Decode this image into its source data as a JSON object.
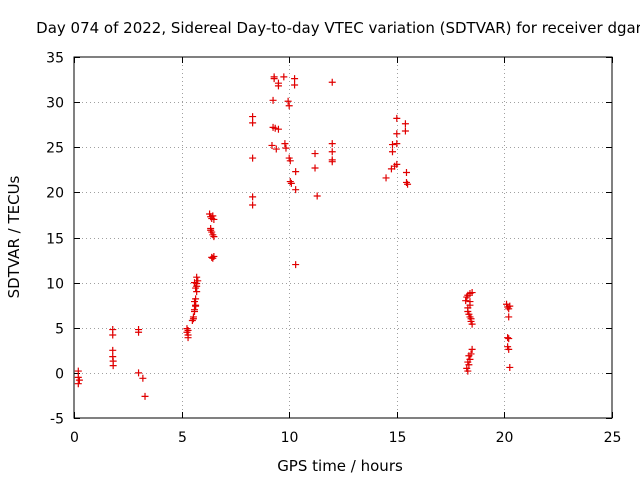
{
  "chart_data": {
    "type": "scatter",
    "title": "Day 074 of 2022, Sidereal Day-to-day VTEC variation (SDTVAR) for receiver dgar",
    "xlabel": "GPS time / hours",
    "ylabel": "SDTVAR / TECUs",
    "xlim": [
      0,
      25
    ],
    "ylim": [
      -5,
      35
    ],
    "xticks": [
      0,
      5,
      10,
      15,
      20,
      25
    ],
    "yticks": [
      -5,
      0,
      5,
      10,
      15,
      20,
      25,
      30,
      35
    ],
    "grid": true,
    "marker": "+",
    "color": "#e00000",
    "x": [
      0.2,
      0.2,
      0.2,
      0.25,
      1.8,
      1.8,
      1.8,
      1.8,
      1.82,
      1.82,
      3.0,
      3.0,
      3.0,
      3.2,
      3.3,
      5.25,
      5.25,
      5.3,
      5.3,
      5.3,
      5.5,
      5.55,
      5.6,
      5.65,
      5.6,
      5.65,
      5.7,
      5.7,
      5.75,
      5.7,
      5.6,
      5.65,
      5.7,
      5.55,
      5.6,
      5.65,
      6.3,
      6.35,
      6.4,
      6.45,
      6.5,
      6.35,
      6.4,
      6.45,
      6.5,
      6.4,
      6.45,
      6.5,
      6.35,
      8.3,
      8.3,
      8.3,
      8.3,
      8.3,
      9.2,
      9.25,
      9.25,
      9.3,
      9.3,
      9.35,
      9.4,
      9.5,
      9.5,
      9.5,
      9.75,
      9.8,
      9.85,
      9.95,
      10.0,
      10.0,
      10.05,
      10.05,
      10.1,
      10.25,
      10.25,
      10.3,
      10.3,
      10.3,
      11.2,
      11.2,
      11.3,
      12.0,
      12.0,
      12.0,
      12.0,
      12.0,
      14.5,
      14.75,
      14.8,
      14.8,
      14.9,
      15.0,
      15.0,
      15.0,
      15.0,
      15.4,
      15.4,
      15.45,
      15.45,
      15.5,
      18.2,
      18.25,
      18.3,
      18.3,
      18.35,
      18.4,
      18.4,
      18.45,
      18.5,
      18.3,
      18.35,
      18.4,
      18.45,
      18.5,
      18.25,
      18.3,
      18.35,
      18.3,
      18.4,
      18.45,
      18.5,
      18.4,
      20.1,
      20.15,
      20.2,
      20.25,
      20.15,
      20.2,
      20.15,
      20.2,
      20.25,
      20.2
    ],
    "y": [
      0.2,
      -0.5,
      -1.2,
      -0.8,
      4.8,
      4.2,
      2.5,
      1.8,
      1.3,
      0.8,
      4.8,
      4.5,
      0.0,
      -0.6,
      -2.6,
      4.9,
      4.5,
      4.2,
      4.7,
      3.9,
      5.8,
      6.2,
      6.8,
      7.4,
      7.9,
      8.2,
      9.0,
      9.6,
      10.2,
      10.6,
      10.0,
      9.4,
      9.9,
      6.0,
      7.0,
      7.5,
      17.6,
      17.3,
      17.1,
      17.4,
      17.0,
      16.0,
      15.6,
      15.3,
      15.1,
      12.8,
      12.7,
      12.9,
      15.8,
      28.4,
      27.7,
      23.8,
      19.5,
      18.6,
      25.2,
      27.2,
      30.2,
      32.6,
      32.8,
      27.1,
      24.8,
      31.8,
      32.1,
      27.0,
      32.8,
      25.4,
      24.9,
      30.1,
      29.6,
      23.8,
      23.5,
      21.2,
      21.0,
      32.6,
      31.9,
      22.3,
      20.3,
      12.0,
      24.3,
      22.7,
      19.6,
      32.2,
      25.4,
      24.5,
      23.6,
      23.4,
      21.6,
      22.6,
      25.3,
      24.5,
      22.9,
      28.2,
      26.5,
      25.4,
      23.1,
      27.6,
      26.8,
      22.2,
      21.1,
      20.9,
      8.0,
      8.4,
      8.6,
      7.2,
      6.5,
      8.8,
      7.5,
      6.0,
      5.4,
      0.2,
      0.9,
      1.5,
      2.1,
      2.6,
      0.5,
      1.2,
      1.9,
      6.8,
      6.2,
      5.7,
      8.9,
      7.9,
      7.6,
      7.3,
      7.1,
      7.4,
      3.9,
      3.8,
      2.9,
      2.6,
      0.6,
      6.2
    ]
  }
}
